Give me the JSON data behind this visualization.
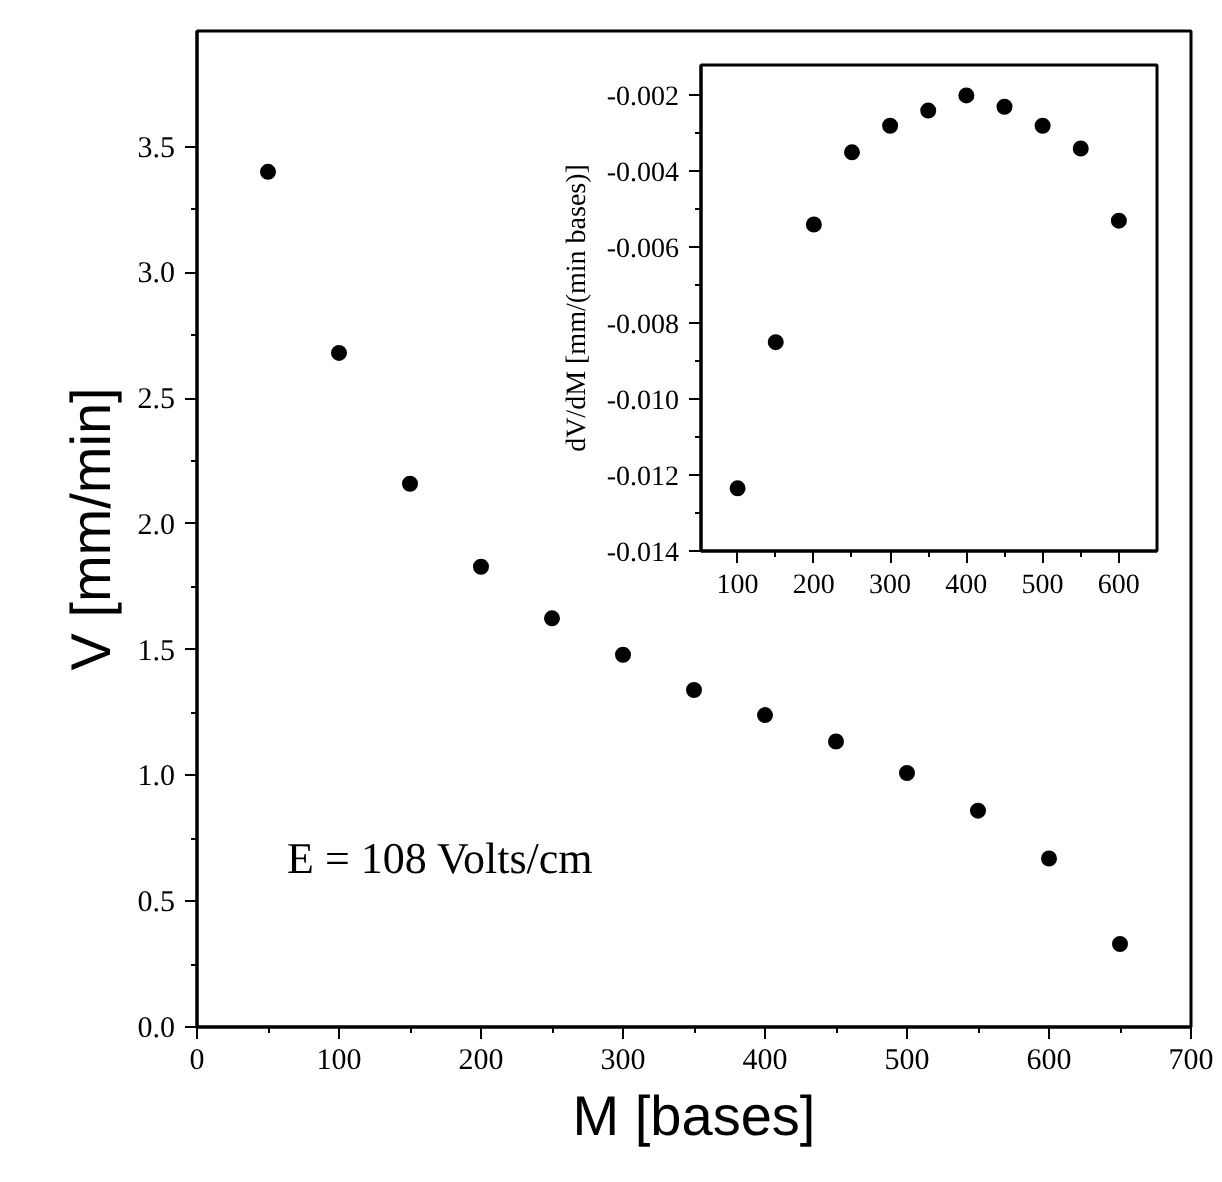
{
  "chart_data": [
    {
      "type": "scatter",
      "xlabel": "M [bases]",
      "ylabel": "V [mm/min]",
      "marker": "circle",
      "grid": false,
      "annotations": [
        "E = 108 Volts/cm"
      ],
      "x": [
        50,
        100,
        150,
        200,
        250,
        300,
        350,
        400,
        450,
        500,
        550,
        600,
        650
      ],
      "series": [
        {
          "color": "#000000",
          "values": [
            3.4,
            2.68,
            2.16,
            1.83,
            1.625,
            1.48,
            1.34,
            1.24,
            1.135,
            1.01,
            0.86,
            0.67,
            0.33
          ]
        }
      ],
      "xlim": [
        0,
        700
      ],
      "ylim": [
        0,
        3.96
      ],
      "xticks": [
        0,
        100,
        200,
        300,
        400,
        500,
        600,
        700
      ],
      "yticks": [
        {
          "value": 0,
          "label": "0.0"
        },
        {
          "value": 0.5,
          "label": "0.5"
        },
        {
          "value": 1,
          "label": "1.0"
        },
        {
          "value": 1.5,
          "label": "1.5"
        },
        {
          "value": 2,
          "label": "2.0"
        },
        {
          "value": 2.5,
          "label": "2.5"
        },
        {
          "value": 3,
          "label": "3.0"
        },
        {
          "value": 3.5,
          "label": "3.5"
        }
      ]
    },
    {
      "type": "scatter",
      "ylabel": "dV/dM [mm/(min bases)]",
      "marker": "circle",
      "grid": false,
      "x": [
        100,
        150,
        200,
        250,
        300,
        350,
        400,
        450,
        500,
        550,
        600
      ],
      "series": [
        {
          "color": "#000000",
          "values": [
            -0.01235,
            -0.0085,
            -0.0054,
            -0.0035,
            -0.0028,
            -0.0024,
            -0.002,
            -0.0023,
            -0.0028,
            -0.0034,
            -0.0053
          ]
        }
      ],
      "xlim": [
        52,
        650
      ],
      "ylim": [
        -0.014,
        -0.0012
      ],
      "xticks": [
        100,
        200,
        300,
        400,
        500,
        600
      ],
      "yticks": [
        {
          "value": -0.014,
          "label": "-0.014"
        },
        {
          "value": -0.012,
          "label": "-0.012"
        },
        {
          "value": -0.01,
          "label": "-0.010"
        },
        {
          "value": -0.008,
          "label": "-0.008"
        },
        {
          "value": -0.006,
          "label": "-0.006"
        },
        {
          "value": -0.004,
          "label": "-0.004"
        },
        {
          "value": -0.002,
          "label": "-0.002"
        }
      ]
    }
  ]
}
